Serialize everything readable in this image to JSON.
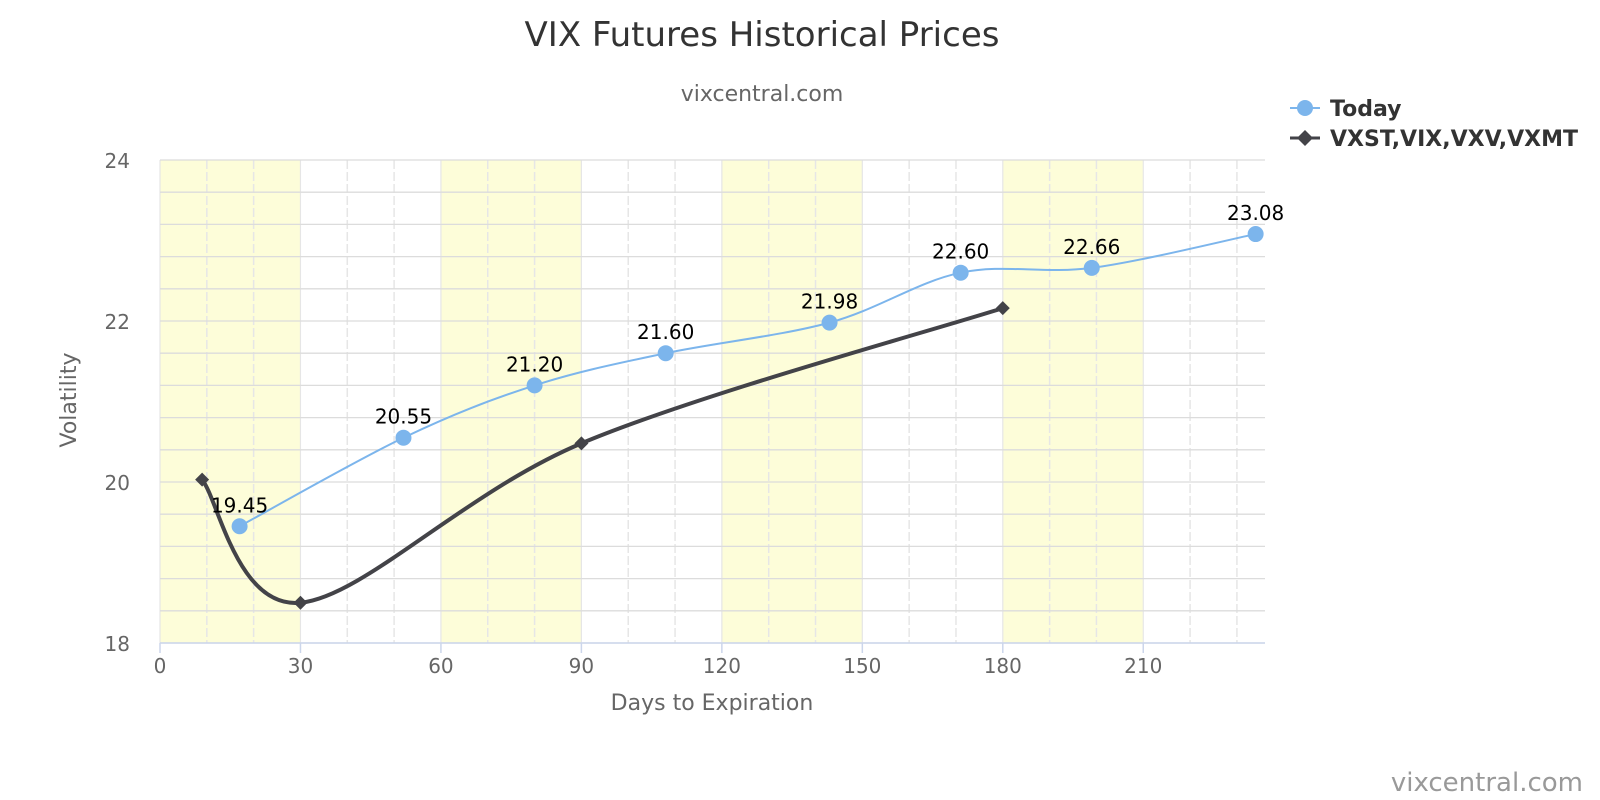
{
  "chart_data": {
    "type": "line",
    "title": "VIX Futures Historical Prices",
    "subtitle": "vixcentral.com",
    "xlabel": "Days to Expiration",
    "ylabel": "Volatility",
    "xlim": [
      0,
      236
    ],
    "ylim": [
      18,
      24
    ],
    "x_ticks": [
      0,
      30,
      60,
      90,
      120,
      150,
      180,
      210
    ],
    "y_ticks": [
      18,
      20,
      22,
      24
    ],
    "grid": true,
    "shaded_bands": [
      [
        0,
        30
      ],
      [
        60,
        90
      ],
      [
        120,
        150
      ],
      [
        180,
        210
      ]
    ],
    "legend_position": "top-right",
    "series": [
      {
        "name": "Today",
        "marker": "circle",
        "color": "#7cb5ec",
        "x": [
          17,
          52,
          80,
          108,
          143,
          171,
          199,
          234
        ],
        "values": [
          19.45,
          20.55,
          21.2,
          21.6,
          21.98,
          22.6,
          22.66,
          23.08
        ],
        "labels": [
          "19.45",
          "20.55",
          "21.20",
          "21.60",
          "21.98",
          "22.60",
          "22.66",
          "23.08"
        ]
      },
      {
        "name": "VXST,VIX,VXV,VXMT",
        "marker": "diamond",
        "color": "#434348",
        "x": [
          9,
          30,
          90,
          180
        ],
        "values": [
          20.03,
          18.5,
          20.48,
          22.16
        ]
      }
    ]
  },
  "credit": "vixcentral.com",
  "colors": {
    "band": "#fdfdd9",
    "grid": "#e6e6e6",
    "axis": "#ccd6eb"
  }
}
